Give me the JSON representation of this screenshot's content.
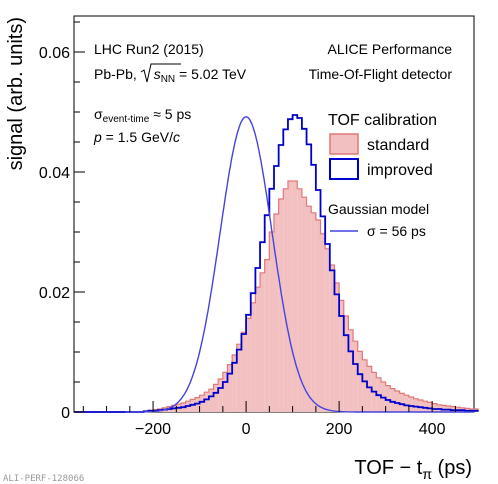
{
  "chart_data": {
    "type": "histogram",
    "xlabel": "TOF − t",
    "xlabel_sub": "π",
    "xlabel_unit": " (ps)",
    "ylabel": "signal (arb. units)",
    "xlim": [
      -370,
      490
    ],
    "ylim": [
      0,
      0.066
    ],
    "x_ticks": [
      -200,
      0,
      200,
      400
    ],
    "y_ticks": [
      0,
      0.02,
      0.04,
      0.06
    ],
    "y_tick_labels": [
      "0",
      "0.02",
      "0.04",
      "0.06"
    ],
    "bin_width": 10,
    "bin_start": -370,
    "series": [
      {
        "name": "standard",
        "style": "filled",
        "fill": "#f2c0c0",
        "stroke": "#e07878",
        "values": [
          0,
          0,
          0,
          0,
          0,
          0,
          0,
          0,
          0,
          0,
          0,
          0,
          0,
          0,
          0,
          0.0002,
          0.0003,
          0.0004,
          0.0005,
          0.0007,
          0.0009,
          0.0011,
          0.0013,
          0.0015,
          0.0018,
          0.0021,
          0.0024,
          0.0028,
          0.0033,
          0.0038,
          0.0046,
          0.0055,
          0.0066,
          0.0079,
          0.0095,
          0.0113,
          0.0133,
          0.0156,
          0.0182,
          0.0208,
          0.0232,
          0.0254,
          0.03,
          0.033,
          0.0355,
          0.0372,
          0.0385,
          0.0385,
          0.0372,
          0.0358,
          0.0343,
          0.0332,
          0.032,
          0.0297,
          0.0272,
          0.0245,
          0.0215,
          0.0186,
          0.016,
          0.0137,
          0.0118,
          0.0101,
          0.0087,
          0.0076,
          0.0066,
          0.0057,
          0.005,
          0.0044,
          0.0039,
          0.0035,
          0.0031,
          0.0028,
          0.0025,
          0.0022,
          0.002,
          0.0018,
          0.0016,
          0.0014,
          0.0012,
          0.0011,
          0.001,
          0.0009,
          0.0008,
          0.0007,
          0.0006,
          0.0005,
          0.0005
        ]
      },
      {
        "name": "improved",
        "style": "outline",
        "stroke": "#0000cc",
        "values": [
          0,
          0,
          0,
          0,
          0,
          0,
          0,
          0,
          0,
          0,
          0,
          0,
          0,
          0,
          0,
          0.0001,
          0.0002,
          0.0002,
          0.0003,
          0.0004,
          0.0005,
          0.0006,
          0.0007,
          0.0008,
          0.001,
          0.0012,
          0.0014,
          0.0017,
          0.0021,
          0.0026,
          0.0032,
          0.004,
          0.005,
          0.0064,
          0.0082,
          0.0104,
          0.013,
          0.0162,
          0.0198,
          0.024,
          0.0283,
          0.0328,
          0.0372,
          0.041,
          0.0445,
          0.0471,
          0.0488,
          0.0495,
          0.049,
          0.0472,
          0.0446,
          0.0412,
          0.037,
          0.0326,
          0.028,
          0.0236,
          0.0196,
          0.016,
          0.0128,
          0.0101,
          0.008,
          0.0063,
          0.0051,
          0.0041,
          0.0034,
          0.0028,
          0.0024,
          0.002,
          0.0017,
          0.0015,
          0.0013,
          0.0011,
          0.001,
          0.0009,
          0.0008,
          0.0007,
          0.0006,
          0.0005,
          0.0005,
          0.0004,
          0.0004,
          0.0003,
          0.0003,
          0.0003,
          0.0002,
          0.0002,
          0.0002
        ]
      }
    ],
    "model": {
      "name": "σ = 56 ps",
      "color": "#4444dd",
      "mean": 0,
      "sigma": 56,
      "amplitude": 0.0492
    },
    "annotations": {
      "line1": "LHC Run2 (2015)",
      "line2_prefix": "Pb-Pb, ",
      "line2_sqrt": "s",
      "line2_sub": "NN",
      "line2_suffix": " = 5.02 TeV",
      "right1": "ALICE Performance",
      "right2": "Time-Of-Flight detector",
      "sigma_sym": "σ",
      "sigma_sub": "event-time",
      "sigma_val": " ≈ 5 ps",
      "p_sym": "p",
      "p_val": " = 1.5 GeV/",
      "p_c": "c"
    },
    "legend": {
      "title": "TOF calibration",
      "entries": [
        "standard",
        "improved"
      ],
      "model_title": "Gaussian model",
      "placement": "right"
    },
    "watermark": "ALI-PERF-128066"
  }
}
